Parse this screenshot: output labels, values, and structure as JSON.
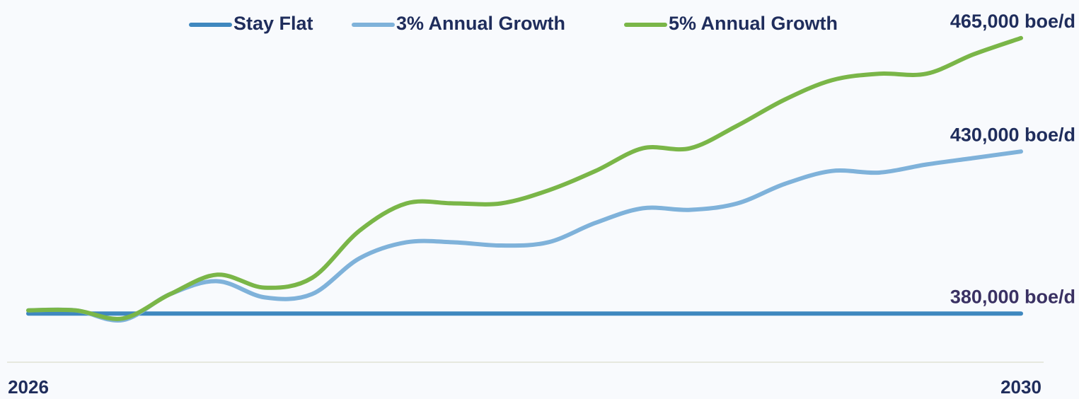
{
  "chart_data": {
    "type": "line",
    "categories": [
      "2026",
      null,
      null,
      null,
      null,
      null,
      null,
      null,
      null,
      null,
      null,
      null,
      null,
      null,
      null,
      null,
      null,
      null,
      null,
      null,
      null,
      "2030"
    ],
    "series": [
      {
        "name": "Stay Flat",
        "color": "#3f88bf",
        "end_label": "380,000 boe/d",
        "values": [
          380000,
          380000,
          380000,
          380000,
          380000,
          380000,
          380000,
          380000,
          380000,
          380000,
          380000,
          380000,
          380000,
          380000,
          380000,
          380000,
          380000,
          380000,
          380000,
          380000,
          380000,
          380000
        ]
      },
      {
        "name": "3% Annual Growth",
        "color": "#7fb2da",
        "end_label": "430,000 boe/d",
        "values": [
          381000,
          381000,
          378000,
          386000,
          390000,
          385000,
          386000,
          397000,
          402000,
          402000,
          401000,
          402000,
          408000,
          412500,
          412000,
          414000,
          420000,
          424000,
          423500,
          426000,
          428000,
          430000
        ]
      },
      {
        "name": "5% Annual Growth",
        "color": "#7ab648",
        "end_label": "465,000 boe/d",
        "values": [
          381000,
          381000,
          378500,
          386000,
          392000,
          388000,
          391000,
          405500,
          414000,
          414000,
          414000,
          418000,
          424000,
          431000,
          431000,
          438000,
          446000,
          452000,
          454000,
          454000,
          460000,
          465000
        ]
      }
    ],
    "ylim": [
      365000,
      475000
    ],
    "grid": false
  }
}
